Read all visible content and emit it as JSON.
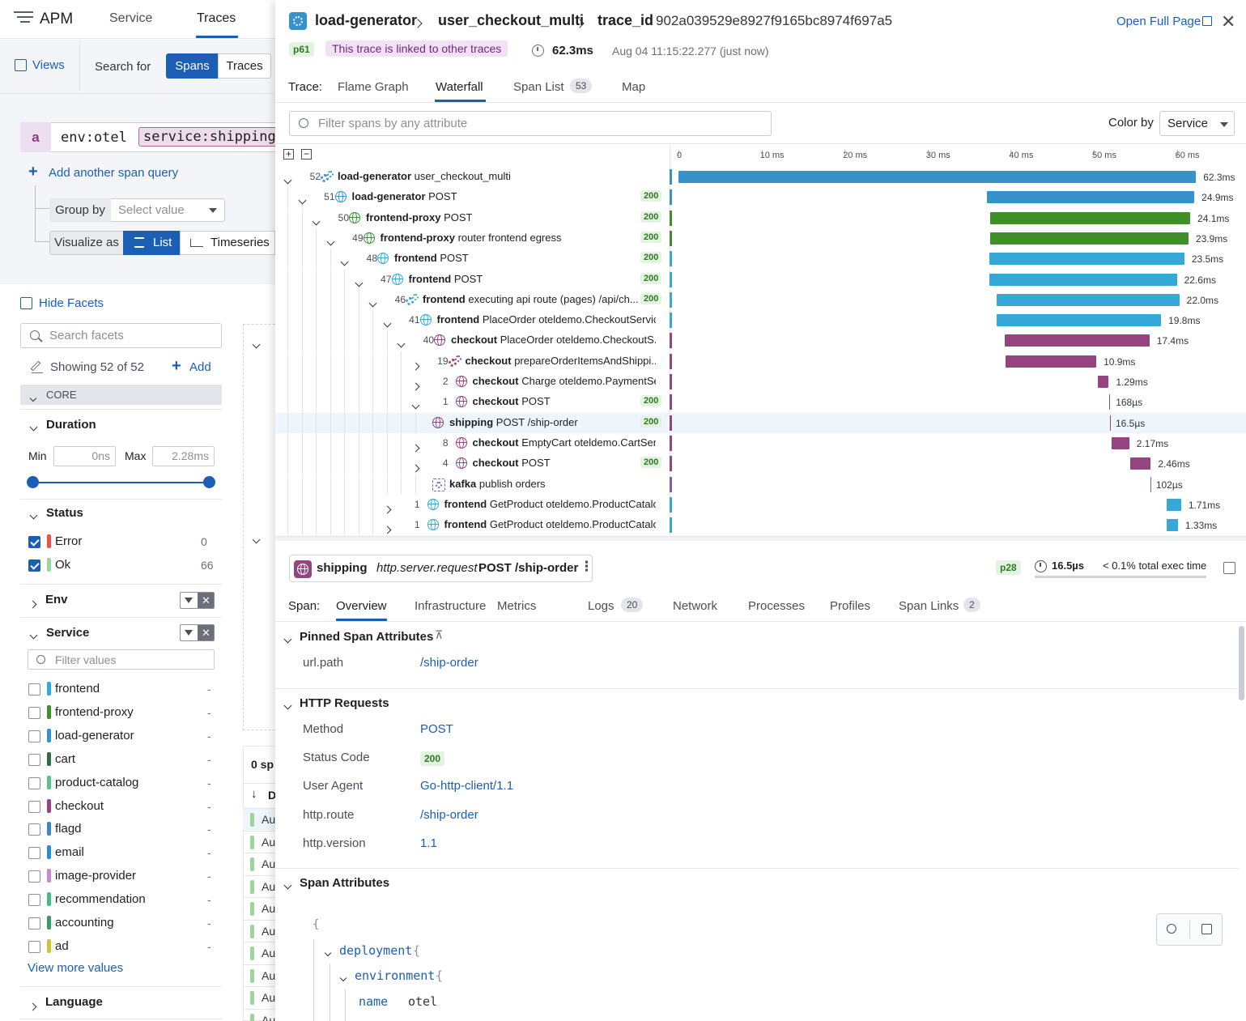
{
  "left": {
    "app_title": "APM",
    "nav_tabs": [
      "Service",
      "Traces"
    ],
    "views_label": "Views",
    "search_for_label": "Search for",
    "toggle": [
      "Spans",
      "Traces"
    ],
    "query_letter": "a",
    "query_env": "env:otel",
    "query_service": "service:shipping",
    "add_query": "Add another span query",
    "group_by_label": "Group by",
    "group_by_value": "Select value",
    "visualize_label": "Visualize as",
    "visualize_list": "List",
    "visualize_timeseries": "Timeseries",
    "hide_facets": "Hide Facets",
    "search_facets_placeholder": "Search facets",
    "showing": "Showing 52 of 52",
    "add": "Add",
    "core": "CORE",
    "duration_title": "Duration",
    "min_label": "Min",
    "min_value": "0ns",
    "max_label": "Max",
    "max_value": "2.28ms",
    "status_title": "Status",
    "status": [
      {
        "label": "Error",
        "count": "0",
        "color": "#e5534b"
      },
      {
        "label": "Ok",
        "count": "66",
        "color": "#9bd59b"
      }
    ],
    "env_title": "Env",
    "service_title": "Service",
    "filter_values_placeholder": "Filter values",
    "services": [
      {
        "name": "frontend",
        "color": "#36a8d8",
        "count": "-"
      },
      {
        "name": "frontend-proxy",
        "color": "#3f8f2a",
        "count": "-"
      },
      {
        "name": "load-generator",
        "color": "#3791cb",
        "count": "-"
      },
      {
        "name": "cart",
        "color": "#2f6b47",
        "count": "-"
      },
      {
        "name": "product-catalog",
        "color": "#5cc08a",
        "count": "-"
      },
      {
        "name": "checkout",
        "color": "#94457f",
        "count": "-"
      },
      {
        "name": "flagd",
        "color": "#3a86c4",
        "count": "-"
      },
      {
        "name": "email",
        "color": "#2d8bd0",
        "count": "-"
      },
      {
        "name": "image-provider",
        "color": "#c989cf",
        "count": "-"
      },
      {
        "name": "recommendation",
        "color": "#4cb88a",
        "count": "-"
      },
      {
        "name": "accounting",
        "color": "#3a9a6a",
        "count": "-"
      },
      {
        "name": "ad",
        "color": "#c4c93a",
        "count": "-"
      }
    ],
    "view_more": "View more values",
    "language_title": "Language",
    "peek_count": "0 sp",
    "peek_col": "D",
    "peek_row": "Au"
  },
  "header": {
    "service": "load-generator",
    "operation": "user_checkout_multi",
    "trace_label": "trace_id",
    "trace_id": "902a039529e8927f9165bc8974f697a5",
    "open_full": "Open Full Page",
    "pct": "p61",
    "linked": "This trace is linked to other traces",
    "duration": "62.3ms",
    "timestamp": "Aug 04 11:15:22.277 (just now)"
  },
  "trace_tabs": {
    "label": "Trace:",
    "items": [
      "Flame Graph",
      "Waterfall",
      "Span List",
      "Map"
    ],
    "span_count": "53"
  },
  "filter_placeholder": "Filter spans by any attribute",
  "color_by_label": "Color by",
  "color_by_value": "Service",
  "axis_ticks": [
    "0",
    "10 ms",
    "20 ms",
    "30 ms",
    "40 ms",
    "50 ms",
    "60 ms"
  ],
  "spans": [
    {
      "count": "52",
      "service": "load-generator",
      "resource": "user_checkout_multi",
      "status": "",
      "duration": "62.3ms",
      "depth": 0,
      "icon": "gear",
      "color": "#3791cb",
      "start": 0,
      "end": 62.3,
      "caret": "down"
    },
    {
      "count": "51",
      "service": "load-generator",
      "resource": "POST",
      "status": "200",
      "duration": "24.9ms",
      "depth": 1,
      "icon": "globe",
      "color": "#3791cb",
      "start": 37.1,
      "end": 62.1,
      "caret": "down"
    },
    {
      "count": "50",
      "service": "frontend-proxy",
      "resource": "POST",
      "status": "200",
      "duration": "24.1ms",
      "depth": 2,
      "icon": "globe",
      "color": "#3f8f2a",
      "start": 37.5,
      "end": 61.6,
      "caret": "down"
    },
    {
      "count": "49",
      "service": "frontend-proxy",
      "resource": "router frontend egress",
      "status": "200",
      "duration": "23.9ms",
      "depth": 3,
      "icon": "globe",
      "color": "#3f8f2a",
      "start": 37.5,
      "end": 61.4,
      "caret": "down"
    },
    {
      "count": "48",
      "service": "frontend",
      "resource": "POST",
      "status": "200",
      "duration": "23.5ms",
      "depth": 4,
      "icon": "globe",
      "color": "#36a8d8",
      "start": 37.4,
      "end": 60.9,
      "caret": "down"
    },
    {
      "count": "47",
      "service": "frontend",
      "resource": "POST",
      "status": "200",
      "duration": "22.6ms",
      "depth": 5,
      "icon": "globe",
      "color": "#36a8d8",
      "start": 37.4,
      "end": 60.0,
      "caret": "down"
    },
    {
      "count": "46",
      "service": "frontend",
      "resource": "executing api route (pages) /api/ch...",
      "status": "200",
      "duration": "22.0ms",
      "depth": 6,
      "icon": "gear",
      "color": "#36a8d8",
      "start": 38.3,
      "end": 60.3,
      "caret": "down"
    },
    {
      "count": "41",
      "service": "frontend",
      "resource": "PlaceOrder oteldemo.CheckoutService",
      "status": "",
      "duration": "19.8ms",
      "depth": 7,
      "icon": "globe",
      "color": "#36a8d8",
      "start": 38.3,
      "end": 58.1,
      "caret": "down"
    },
    {
      "count": "40",
      "service": "checkout",
      "resource": "PlaceOrder oteldemo.CheckoutS...",
      "status": "",
      "duration": "17.4ms",
      "depth": 8,
      "icon": "globe",
      "color": "#94457f",
      "start": 39.3,
      "end": 56.7,
      "caret": "down"
    },
    {
      "count": "19",
      "service": "checkout",
      "resource": "prepareOrderItemsAndShippi...",
      "status": "",
      "duration": "10.9ms",
      "depth": 9,
      "icon": "gear",
      "color": "#94457f",
      "start": 39.4,
      "end": 50.3,
      "caret": "right"
    },
    {
      "count": "2",
      "service": "checkout",
      "resource": "Charge oteldemo.PaymentSer...",
      "status": "",
      "duration": "1.29ms",
      "depth": 9,
      "icon": "globe",
      "color": "#94457f",
      "start": 50.5,
      "end": 51.79,
      "caret": "right"
    },
    {
      "count": "1",
      "service": "checkout",
      "resource": "POST",
      "status": "200",
      "duration": "168µs",
      "depth": 9,
      "icon": "globe",
      "color": "#94457f",
      "start": 51.9,
      "end": 52.068,
      "caret": "down"
    },
    {
      "count": "",
      "service": "shipping",
      "resource": "POST /ship-order",
      "status": "200",
      "duration": "16.5µs",
      "depth": 10,
      "icon": "globe",
      "color": "#94457f",
      "start": 51.95,
      "end": 51.9665,
      "caret": "",
      "selected": true
    },
    {
      "count": "8",
      "service": "checkout",
      "resource": "EmptyCart oteldemo.CartServi...",
      "status": "",
      "duration": "2.17ms",
      "depth": 9,
      "icon": "globe",
      "color": "#94457f",
      "start": 52.1,
      "end": 54.27,
      "caret": "right"
    },
    {
      "count": "4",
      "service": "checkout",
      "resource": "POST",
      "status": "200",
      "duration": "2.46ms",
      "depth": 9,
      "icon": "globe",
      "color": "#94457f",
      "start": 54.4,
      "end": 56.86,
      "caret": "right"
    },
    {
      "count": "",
      "service": "kafka",
      "resource": "publish orders",
      "status": "",
      "duration": "102µs",
      "depth": 10,
      "icon": "gear-dashed",
      "color": "#7b5fc0",
      "start": 56.8,
      "end": 56.902,
      "caret": ""
    },
    {
      "count": "1",
      "service": "frontend",
      "resource": "GetProduct oteldemo.ProductCatalo...",
      "status": "",
      "duration": "1.71ms",
      "depth": 7,
      "icon": "globe",
      "color": "#36a8d8",
      "start": 58.8,
      "end": 60.51,
      "caret": "right"
    },
    {
      "count": "1",
      "service": "frontend",
      "resource": "GetProduct oteldemo.ProductCatalo...",
      "status": "",
      "duration": "1.33ms",
      "depth": 7,
      "icon": "globe",
      "color": "#36a8d8",
      "start": 58.8,
      "end": 60.13,
      "caret": "right"
    }
  ],
  "span_detail": {
    "service": "shipping",
    "kind": "http.server.request",
    "resource": "POST /ship-order",
    "pct": "p28",
    "duration": "16.5µs",
    "exec": "< 0.1% total exec time",
    "tabs_label": "Span:",
    "tabs": [
      {
        "label": "Overview",
        "count": ""
      },
      {
        "label": "Infrastructure",
        "count": ""
      },
      {
        "label": "Metrics",
        "count": ""
      },
      {
        "label": "Logs",
        "count": "20"
      },
      {
        "label": "Network",
        "count": ""
      },
      {
        "label": "Processes",
        "count": ""
      },
      {
        "label": "Profiles",
        "count": ""
      },
      {
        "label": "Span Links",
        "count": "2"
      }
    ],
    "pinned_title": "Pinned Span Attributes",
    "pinned": [
      {
        "key": "url.path",
        "value": "/ship-order"
      }
    ],
    "http_title": "HTTP Requests",
    "http": [
      {
        "key": "Method",
        "value": "POST"
      },
      {
        "key": "Status Code",
        "value": "200"
      },
      {
        "key": "User Agent",
        "value": "Go-http-client/1.1"
      },
      {
        "key": "http.route",
        "value": "/ship-order"
      },
      {
        "key": "http.version",
        "value": "1.1"
      }
    ],
    "attrs_title": "Span Attributes",
    "json_open": "{",
    "json_deployment": "deployment",
    "json_environment": "environment",
    "json_name_key": "name",
    "json_name_val": "otel"
  }
}
